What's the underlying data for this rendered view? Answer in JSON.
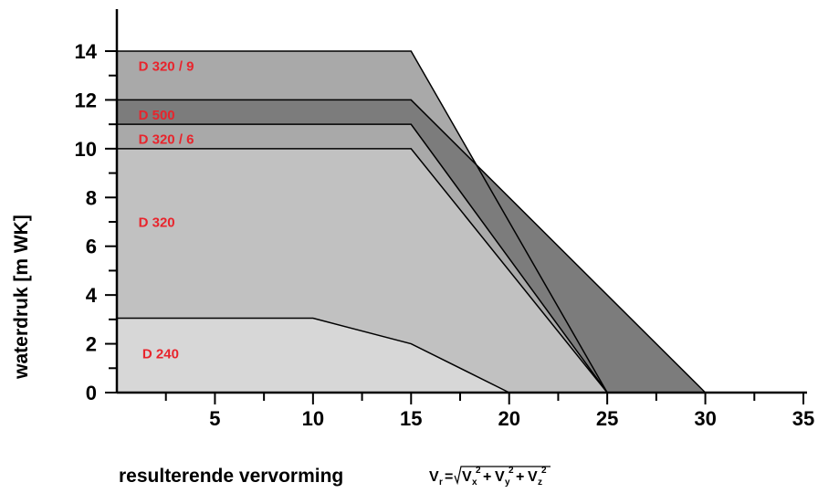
{
  "chart_data": {
    "type": "area",
    "xlabel": "resulterende vervorming",
    "ylabel": "waterdruk [m WK]",
    "formula": {
      "lhs": "V",
      "lhs_sub": "r",
      "eq": "=",
      "terms": [
        {
          "base": "V",
          "sub": "x",
          "sup": "2"
        },
        {
          "base": "V",
          "sub": "y",
          "sup": "2"
        },
        {
          "base": "V",
          "sub": "z",
          "sup": "2"
        }
      ],
      "plus": "+"
    },
    "xlim": [
      0,
      35
    ],
    "ylim": [
      0,
      14
    ],
    "xticks": [
      5,
      10,
      15,
      20,
      25,
      30,
      35
    ],
    "yticks": [
      0,
      2,
      4,
      6,
      8,
      10,
      12,
      14
    ],
    "grid": false,
    "series": [
      {
        "name": "D 320 / 9",
        "x": [
          0,
          15,
          25
        ],
        "y": [
          14,
          14,
          0
        ],
        "color": "#a9a9a9",
        "label_pos": [
          1.1,
          13.2
        ]
      },
      {
        "name": "D 500",
        "x": [
          0,
          15,
          30
        ],
        "y": [
          12,
          12,
          0
        ],
        "color": "#7c7c7c",
        "label_pos": [
          1.1,
          11.2
        ]
      },
      {
        "name": "D 320 / 6",
        "x": [
          0,
          15,
          25
        ],
        "y": [
          11,
          11,
          0
        ],
        "color": "#a9a9a9",
        "label_pos": [
          1.1,
          10.2
        ]
      },
      {
        "name": "D 320",
        "x": [
          0,
          15,
          25
        ],
        "y": [
          10,
          10,
          0
        ],
        "color": "#c1c1c1",
        "label_pos": [
          1.1,
          6.8
        ]
      },
      {
        "name": "D 240",
        "x": [
          0,
          10,
          15,
          20
        ],
        "y": [
          3.05,
          3.05,
          2,
          0
        ],
        "color": "#d7d7d7",
        "label_pos": [
          1.3,
          1.4
        ]
      }
    ],
    "text_color": "#e8242c"
  }
}
